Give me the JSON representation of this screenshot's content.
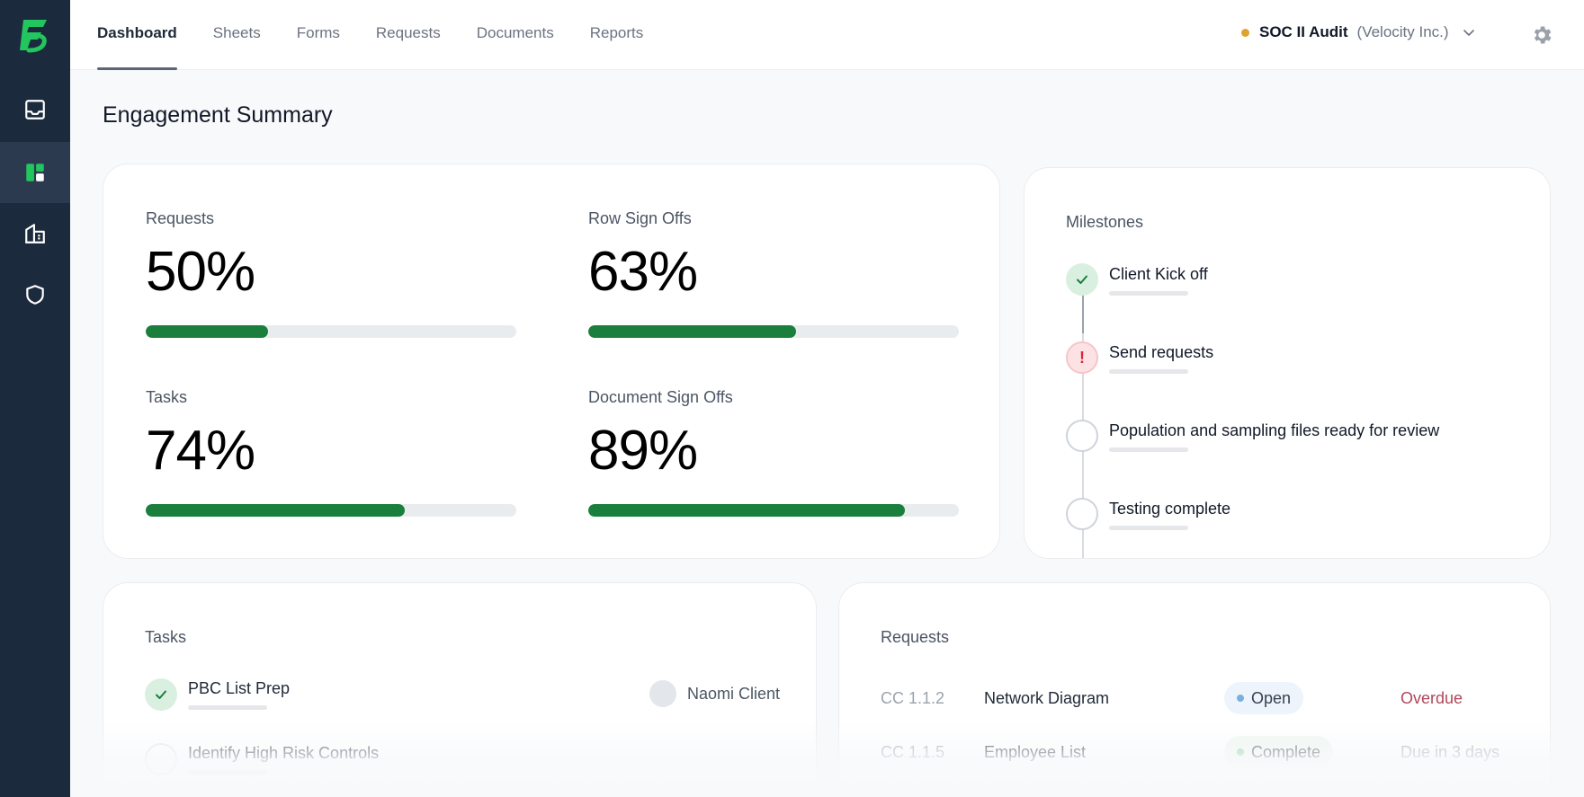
{
  "nav": {
    "tabs": [
      {
        "label": "Dashboard",
        "active": true
      },
      {
        "label": "Sheets"
      },
      {
        "label": "Forms"
      },
      {
        "label": "Requests"
      },
      {
        "label": "Documents"
      },
      {
        "label": "Reports"
      }
    ]
  },
  "sidebar": {
    "icons": [
      "inbox-icon",
      "dashboard-icon",
      "building-icon",
      "shield-icon"
    ],
    "active_index": 1
  },
  "engagement": {
    "name": "SOC II Audit",
    "client": "(Velocity Inc.)",
    "status_color": "#e0a22b"
  },
  "page": {
    "title": "Engagement Summary"
  },
  "summary": {
    "metrics": [
      {
        "label": "Requests",
        "value": "50%",
        "progress": 0.33
      },
      {
        "label": "Row Sign Offs",
        "value": "63%",
        "progress": 0.56
      },
      {
        "label": "Tasks",
        "value": "74%",
        "progress": 0.7
      },
      {
        "label": "Document Sign Offs",
        "value": "89%",
        "progress": 0.855
      }
    ],
    "bar_color": "#1a7f3c"
  },
  "milestones": {
    "heading": "Milestones",
    "items": [
      {
        "title": "Client Kick off",
        "state": "done"
      },
      {
        "title": "Send requests",
        "state": "alert",
        "alert_glyph": "!"
      },
      {
        "title": "Population and sampling files ready for review",
        "state": "pending"
      },
      {
        "title": "Testing complete",
        "state": "pending"
      }
    ]
  },
  "tasks": {
    "heading": "Tasks",
    "items": [
      {
        "title": "PBC List Prep",
        "done": true,
        "assignee": "Naomi Client"
      },
      {
        "title": "Identify High Risk Controls",
        "done": false
      }
    ]
  },
  "requests": {
    "heading": "Requests",
    "items": [
      {
        "id": "CC 1.1.2",
        "name": "Network Diagram",
        "status": "Open",
        "due": "Overdue"
      },
      {
        "id": "CC 1.1.5",
        "name": "Employee List",
        "status": "Complete",
        "due": "Due in 3 days"
      }
    ]
  }
}
